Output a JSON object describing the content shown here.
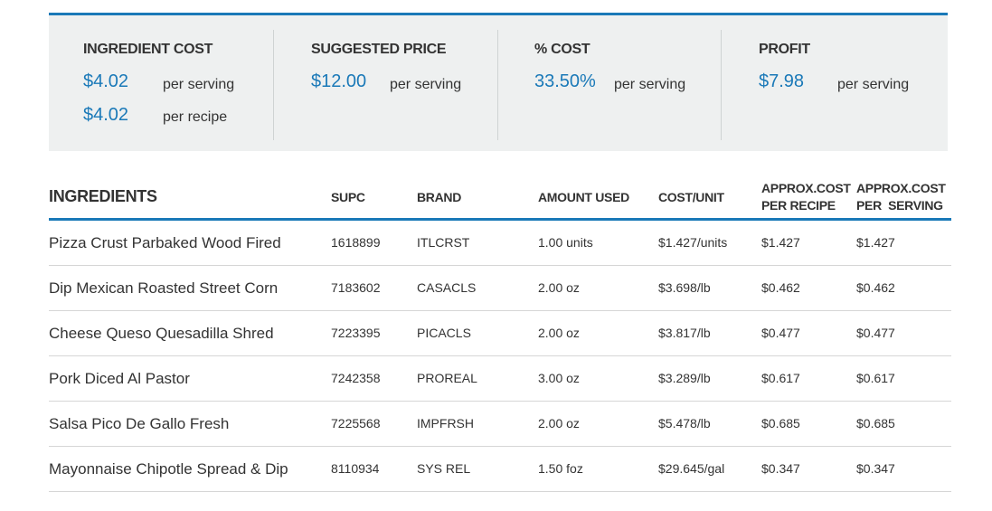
{
  "summary": {
    "ingredient_cost": {
      "title": "INGREDIENT COST",
      "per_serving_value": "$4.02",
      "per_serving_label": "per serving",
      "per_recipe_value": "$4.02",
      "per_recipe_label": "per recipe"
    },
    "suggested_price": {
      "title": "SUGGESTED PRICE",
      "value": "$12.00",
      "label": "per serving"
    },
    "percent_cost": {
      "title": "% COST",
      "value": "33.50%",
      "label": "per serving"
    },
    "profit": {
      "title": "PROFIT",
      "value": "$7.98",
      "label": "per serving"
    }
  },
  "table": {
    "headers": {
      "ingredients": "INGREDIENTS",
      "supc": "SUPC",
      "brand": "BRAND",
      "amount_used": "AMOUNT USED",
      "cost_unit": "COST/UNIT",
      "approx_recipe_1": "APPROX.COST",
      "approx_recipe_2": "PER RECIPE",
      "approx_serving_1": "APPROX.COST",
      "approx_serving_2": "PER  SERVING"
    },
    "rows": [
      {
        "name": "Pizza Crust Parbaked Wood Fired",
        "supc": "1618899",
        "brand": "ITLCRST",
        "amount": "1.00 units",
        "cost_unit": "$1.427/units",
        "per_recipe": "$1.427",
        "per_serving": "$1.427"
      },
      {
        "name": "Dip Mexican Roasted Street Corn",
        "supc": "7183602",
        "brand": "CASACLS",
        "amount": "2.00 oz",
        "cost_unit": "$3.698/lb",
        "per_recipe": "$0.462",
        "per_serving": "$0.462"
      },
      {
        "name": "Cheese Queso Quesadilla Shred",
        "supc": "7223395",
        "brand": "PICACLS",
        "amount": "2.00 oz",
        "cost_unit": "$3.817/lb",
        "per_recipe": "$0.477",
        "per_serving": "$0.477"
      },
      {
        "name": "Pork Diced Al Pastor",
        "supc": "7242358",
        "brand": "PROREAL",
        "amount": "3.00 oz",
        "cost_unit": "$3.289/lb",
        "per_recipe": "$0.617",
        "per_serving": "$0.617"
      },
      {
        "name": "Salsa Pico De Gallo Fresh",
        "supc": "7225568",
        "brand": "IMPFRSH",
        "amount": "2.00 oz",
        "cost_unit": "$5.478/lb",
        "per_recipe": "$0.685",
        "per_serving": "$0.685"
      },
      {
        "name": "Mayonnaise Chipotle Spread & Dip",
        "supc": "8110934",
        "brand": "SYS REL",
        "amount": "1.50 foz",
        "cost_unit": "$29.645/gal",
        "per_recipe": "$0.347",
        "per_serving": "$0.347"
      }
    ]
  }
}
